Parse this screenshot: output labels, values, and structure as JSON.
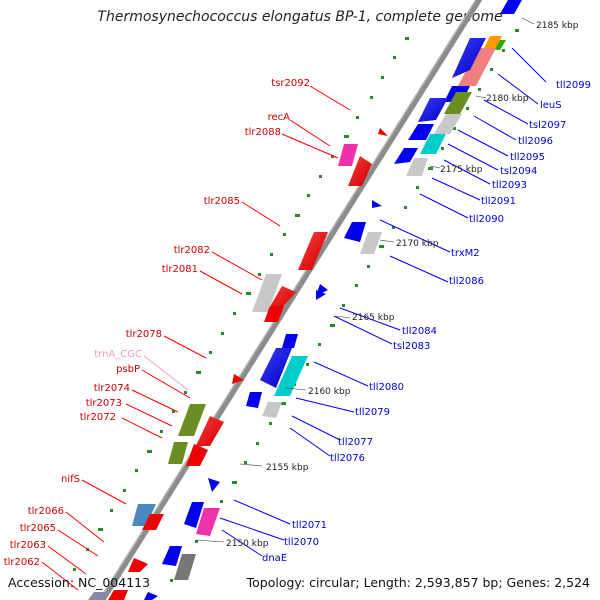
{
  "title": "Thermosynechococcus elongatus BP-1, complete genome",
  "footer": {
    "accession": "Accession: NC_004113",
    "topology": "Topology: circular; Length: 2,593,857 bp; Genes: 2,524"
  },
  "scale_labels": [
    "2185 kbp",
    "2180 kbp",
    "2175 kbp",
    "2170 kbp",
    "2165 kbp",
    "2160 kbp",
    "2155 kbp",
    "2150 kbp"
  ],
  "forward_gene_labels": [
    "tsr2092",
    "recA",
    "tlr2088",
    "tlr2085",
    "tlr2082",
    "tlr2081",
    "tlr2078",
    "psbP",
    "tlr2074",
    "tlr2073",
    "tlr2072",
    "nifS",
    "tlr2066",
    "tlr2065",
    "tlr2063",
    "tlr2062"
  ],
  "trna_gene_labels": [
    "trnA_CGC"
  ],
  "reverse_gene_labels": [
    "tll2099",
    "leuS",
    "tsl2097",
    "tll2096",
    "tll2095",
    "tsl2094",
    "tll2093",
    "tll2091",
    "tll2090",
    "trxM2",
    "tll2086",
    "tll2084",
    "tsl2083",
    "tll2080",
    "tll2079",
    "tll2077",
    "tll2076",
    "tll2071",
    "tll2070",
    "dnaE"
  ],
  "colors": {
    "forward_label": "#cc0000",
    "reverse_label": "#0000cc",
    "trna_label": "#e8a0c0",
    "backbone": "#8c8c8c",
    "tick": "#2a8a2a"
  }
}
